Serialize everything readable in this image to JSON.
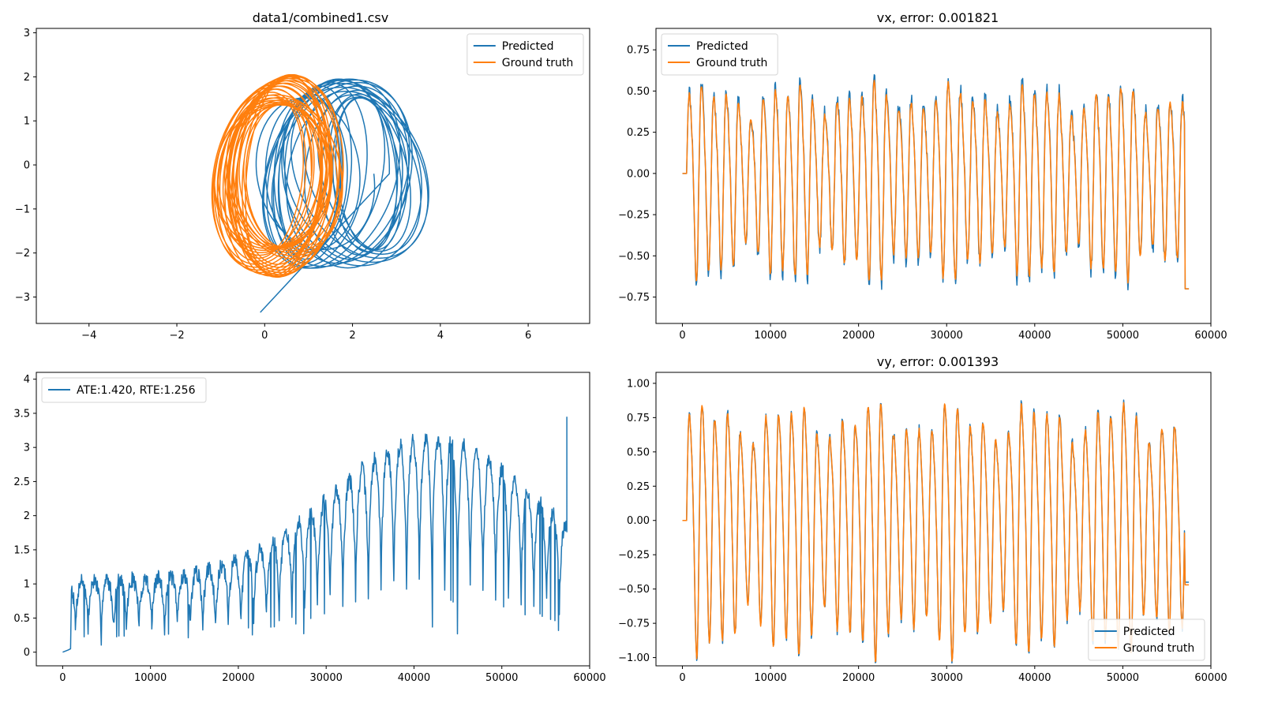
{
  "colors": {
    "predicted": "#1f77b4",
    "ground_truth": "#ff7f0e",
    "axes": "#000000",
    "background": "#ffffff"
  },
  "chart_data": [
    {
      "id": "trajectory",
      "type": "line",
      "title": "data1/combined1.csv",
      "xlim": [
        -5.2,
        7.4
      ],
      "ylim": [
        -3.6,
        3.1
      ],
      "xticks": [
        -4,
        -2,
        0,
        2,
        4,
        6
      ],
      "yticks": [
        -3,
        -2,
        -1,
        0,
        1,
        2,
        3
      ],
      "grid": false,
      "legend_position": "upper right",
      "series": [
        {
          "name": "Predicted",
          "color": "#1f77b4",
          "generator": {
            "kind": "ellipse_drift",
            "cx_start": 1.0,
            "cx_end": 2.35,
            "cy": -0.2,
            "rx": 1.55,
            "ry": 2.15,
            "loops": 22,
            "start": [
              -0.1,
              -3.35
            ]
          }
        },
        {
          "name": "Ground truth",
          "color": "#ff7f0e",
          "generator": {
            "kind": "ellipse_tight",
            "cx": 0.25,
            "cy": -0.25,
            "rx": 1.25,
            "ry": 2.3,
            "loops": 30
          }
        }
      ]
    },
    {
      "id": "vx",
      "type": "line",
      "title": "vx, error: 0.001821",
      "xlim": [
        -3000,
        60000
      ],
      "ylim": [
        -0.91,
        0.88
      ],
      "xticks": [
        0,
        10000,
        20000,
        30000,
        40000,
        50000,
        60000
      ],
      "yticks": [
        -0.75,
        -0.5,
        -0.25,
        0.0,
        0.25,
        0.5,
        0.75
      ],
      "ytick_labels": [
        "−0.75",
        "−0.50",
        "−0.25",
        "0.00",
        "0.25",
        "0.50",
        "0.75"
      ],
      "grid": false,
      "legend_position": "upper left",
      "series": [
        {
          "name": "Predicted",
          "color": "#1f77b4",
          "generator": {
            "kind": "oscillation",
            "x_start": 0,
            "x_onset": 500,
            "x_end": 57000,
            "period": 1400,
            "amp": 0.55,
            "offset": 0.0,
            "end_value": -0.7,
            "noise": 0.05,
            "seed": 11
          }
        },
        {
          "name": "Ground truth",
          "color": "#ff7f0e",
          "generator": {
            "kind": "oscillation",
            "x_start": 0,
            "x_onset": 500,
            "x_end": 57000,
            "period": 1400,
            "amp": 0.53,
            "offset": 0.0,
            "end_value": -0.7,
            "noise": 0.015,
            "seed": 11
          }
        }
      ]
    },
    {
      "id": "error",
      "type": "line",
      "title": "",
      "xlim": [
        -3000,
        60000
      ],
      "ylim": [
        -0.2,
        4.1
      ],
      "xticks": [
        0,
        10000,
        20000,
        30000,
        40000,
        50000,
        60000
      ],
      "yticks": [
        0.0,
        0.5,
        1.0,
        1.5,
        2.0,
        2.5,
        3.0,
        3.5,
        4.0
      ],
      "grid": false,
      "legend_position": "upper left",
      "series": [
        {
          "name": "ATE:1.420, RTE:1.256",
          "color": "#1f77b4",
          "generator": {
            "kind": "error_curve",
            "x_end": 57400,
            "period": 1450,
            "seed": 7
          }
        }
      ]
    },
    {
      "id": "vy",
      "type": "line",
      "title": "vy, error: 0.001393",
      "xlim": [
        -3000,
        60000
      ],
      "ylim": [
        -1.06,
        1.08
      ],
      "xticks": [
        0,
        10000,
        20000,
        30000,
        40000,
        50000,
        60000
      ],
      "yticks": [
        -1.0,
        -0.75,
        -0.5,
        -0.25,
        0.0,
        0.25,
        0.5,
        0.75,
        1.0
      ],
      "ytick_labels": [
        "−1.00",
        "−0.75",
        "−0.50",
        "−0.25",
        "0.00",
        "0.25",
        "0.50",
        "0.75",
        "1.00"
      ],
      "grid": false,
      "legend_position": "lower right",
      "series": [
        {
          "name": "Predicted",
          "color": "#1f77b4",
          "generator": {
            "kind": "oscillation",
            "x_start": 0,
            "x_onset": 500,
            "x_end": 57000,
            "period": 1450,
            "amp": 0.82,
            "offset": 0.02,
            "end_value": -0.45,
            "noise": 0.04,
            "seed": 23
          }
        },
        {
          "name": "Ground truth",
          "color": "#ff7f0e",
          "generator": {
            "kind": "oscillation",
            "x_start": 0,
            "x_onset": 500,
            "x_end": 57000,
            "period": 1450,
            "amp": 0.82,
            "offset": 0.02,
            "end_value": -0.47,
            "noise": 0.015,
            "seed": 23
          }
        }
      ]
    }
  ]
}
